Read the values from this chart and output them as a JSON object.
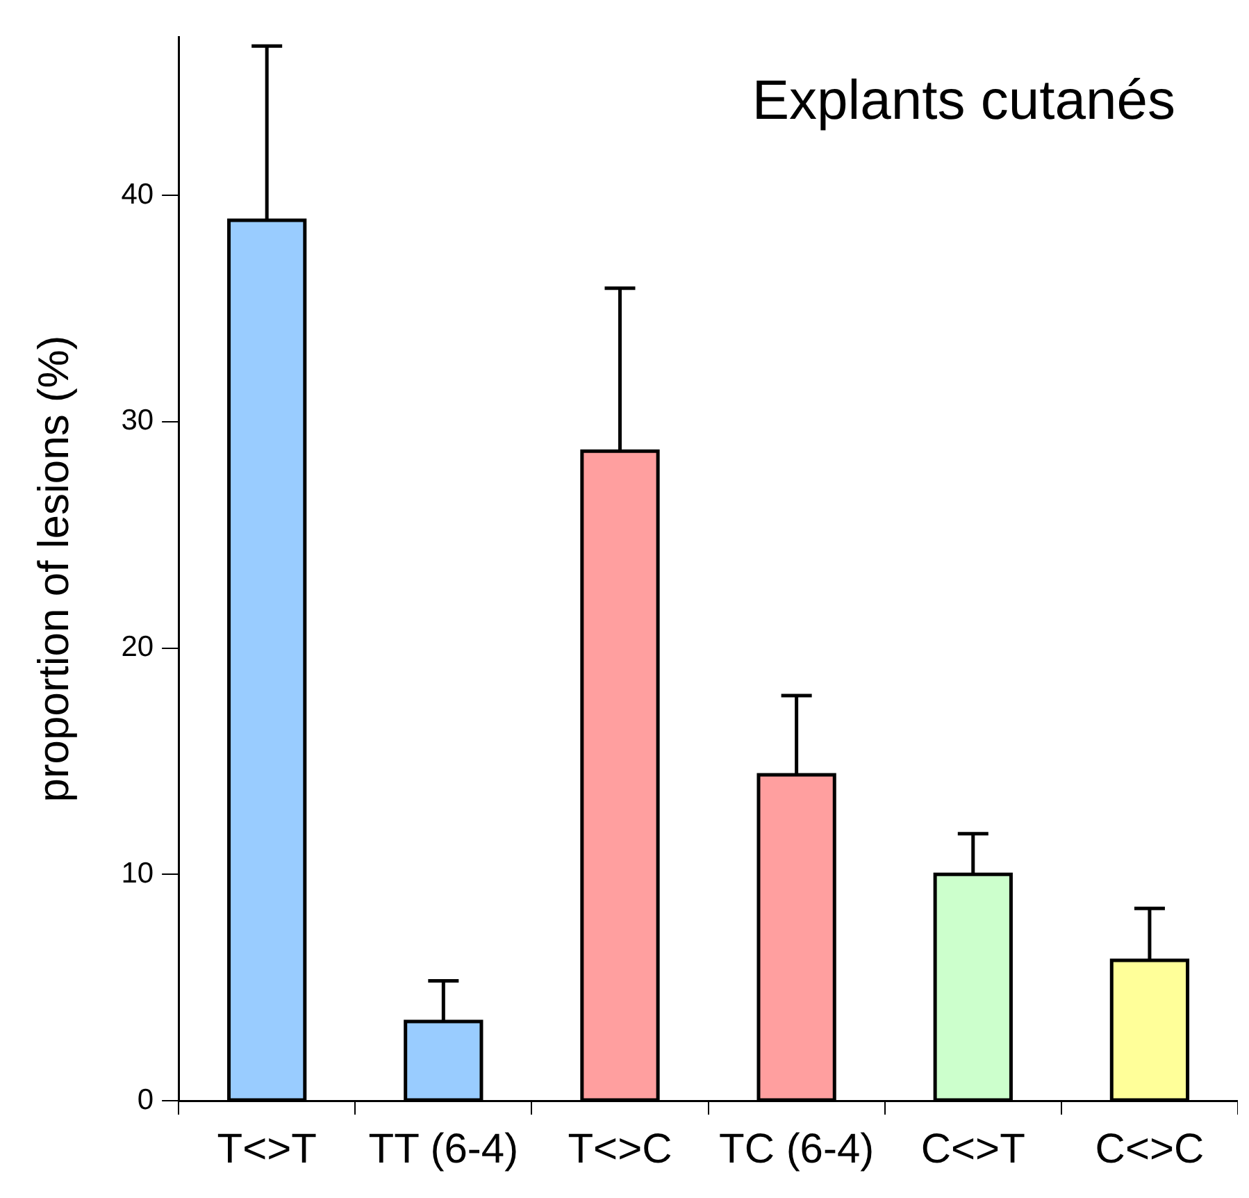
{
  "chart_data": {
    "type": "bar",
    "title": "Explants cutanés",
    "ylabel": "proportion of lesions (%)",
    "categories": [
      "T<>T",
      "TT (6-4)",
      "T<>C",
      "TC (6-4)",
      "C<>T",
      "C<>C"
    ],
    "values": [
      38.9,
      3.5,
      28.7,
      14.4,
      10,
      6.2
    ],
    "colors": [
      "#99ccff",
      "#99ccff",
      "#ff9f9f",
      "#ff9f9f",
      "#ccffcc",
      "#ffff99"
    ],
    "errors": [
      [
        38.9,
        46.6
      ],
      [
        3.5,
        5.3
      ],
      [
        28.7,
        35.9
      ],
      [
        14.4,
        17.9
      ],
      [
        10,
        11.8
      ],
      [
        6.2,
        8.5
      ]
    ],
    "ylim": [
      0,
      47
    ],
    "yticks": [
      0,
      10,
      20,
      30,
      40
    ],
    "grid": false,
    "legend": false
  }
}
